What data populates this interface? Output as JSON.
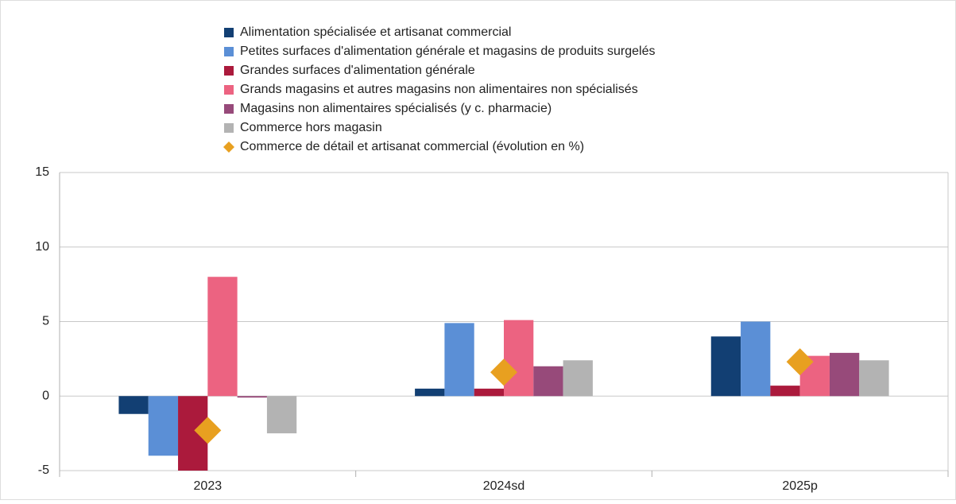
{
  "chart_data": {
    "type": "bar",
    "categories": [
      "2023",
      "2024sd",
      "2025p"
    ],
    "series": [
      {
        "name": "Alimentation spécialisée et artisanat commercial",
        "color": "#123f73",
        "values": [
          -1.2,
          0.5,
          4.0
        ]
      },
      {
        "name": "Petites surfaces d'alimentation générale et magasins de produits surgelés",
        "color": "#5b8fd6",
        "values": [
          -4.0,
          4.9,
          5.0
        ]
      },
      {
        "name": "Grandes surfaces d'alimentation générale",
        "color": "#ab1a3c",
        "values": [
          -5.0,
          0.5,
          0.7
        ]
      },
      {
        "name": "Grands magasins et autres magasins non alimentaires non spécialisés",
        "color": "#ec6381",
        "values": [
          8.0,
          5.1,
          2.7
        ]
      },
      {
        "name": "Magasins non alimentaires spécialisés (y c. pharmacie)",
        "color": "#974a7a",
        "values": [
          -0.1,
          2.0,
          2.9
        ]
      },
      {
        "name": "Commerce hors magasin",
        "color": "#b3b3b3",
        "values": [
          -2.5,
          2.4,
          2.4
        ]
      },
      {
        "name": "Commerce de détail et artisanat commercial (évolution en %)",
        "color": "#e8a020",
        "values": [
          -2.3,
          1.6,
          2.3
        ],
        "marker": "diamond"
      }
    ],
    "ylim": [
      -5,
      15
    ],
    "yticks": [
      -5,
      0,
      5,
      10,
      15
    ],
    "grid": true
  }
}
